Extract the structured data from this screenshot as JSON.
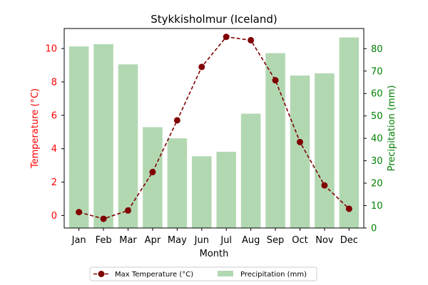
{
  "chart_data": {
    "type": "bar+line",
    "title": "Stykkisholmur (Iceland)",
    "xlabel": "Month",
    "categories": [
      "Jan",
      "Feb",
      "Mar",
      "Apr",
      "May",
      "Jun",
      "Jul",
      "Aug",
      "Sep",
      "Oct",
      "Nov",
      "Dec"
    ],
    "temperature": {
      "name": "Max Temperature (°C)",
      "axis_label": "Temperature (°C)",
      "values": [
        0.2,
        -0.2,
        0.3,
        2.6,
        5.7,
        8.9,
        10.7,
        10.5,
        8.1,
        4.4,
        1.8,
        0.4
      ],
      "ylim": [
        -0.75,
        11.2
      ],
      "ticks": [
        0,
        2,
        4,
        6,
        8,
        10
      ],
      "color": "#800000",
      "axis_color": "#ff0000"
    },
    "precipitation": {
      "name": "Precipitation (mm)",
      "axis_label": "Precipitation (mm)",
      "values": [
        81,
        82,
        73,
        45,
        40,
        32,
        34,
        51,
        78,
        68,
        69,
        85
      ],
      "ylim": [
        0,
        89
      ],
      "ticks": [
        0,
        10,
        20,
        30,
        40,
        50,
        60,
        70,
        80
      ],
      "color": "#b2d8b2",
      "axis_color": "#008000"
    },
    "legend_position": "bottom-center"
  }
}
